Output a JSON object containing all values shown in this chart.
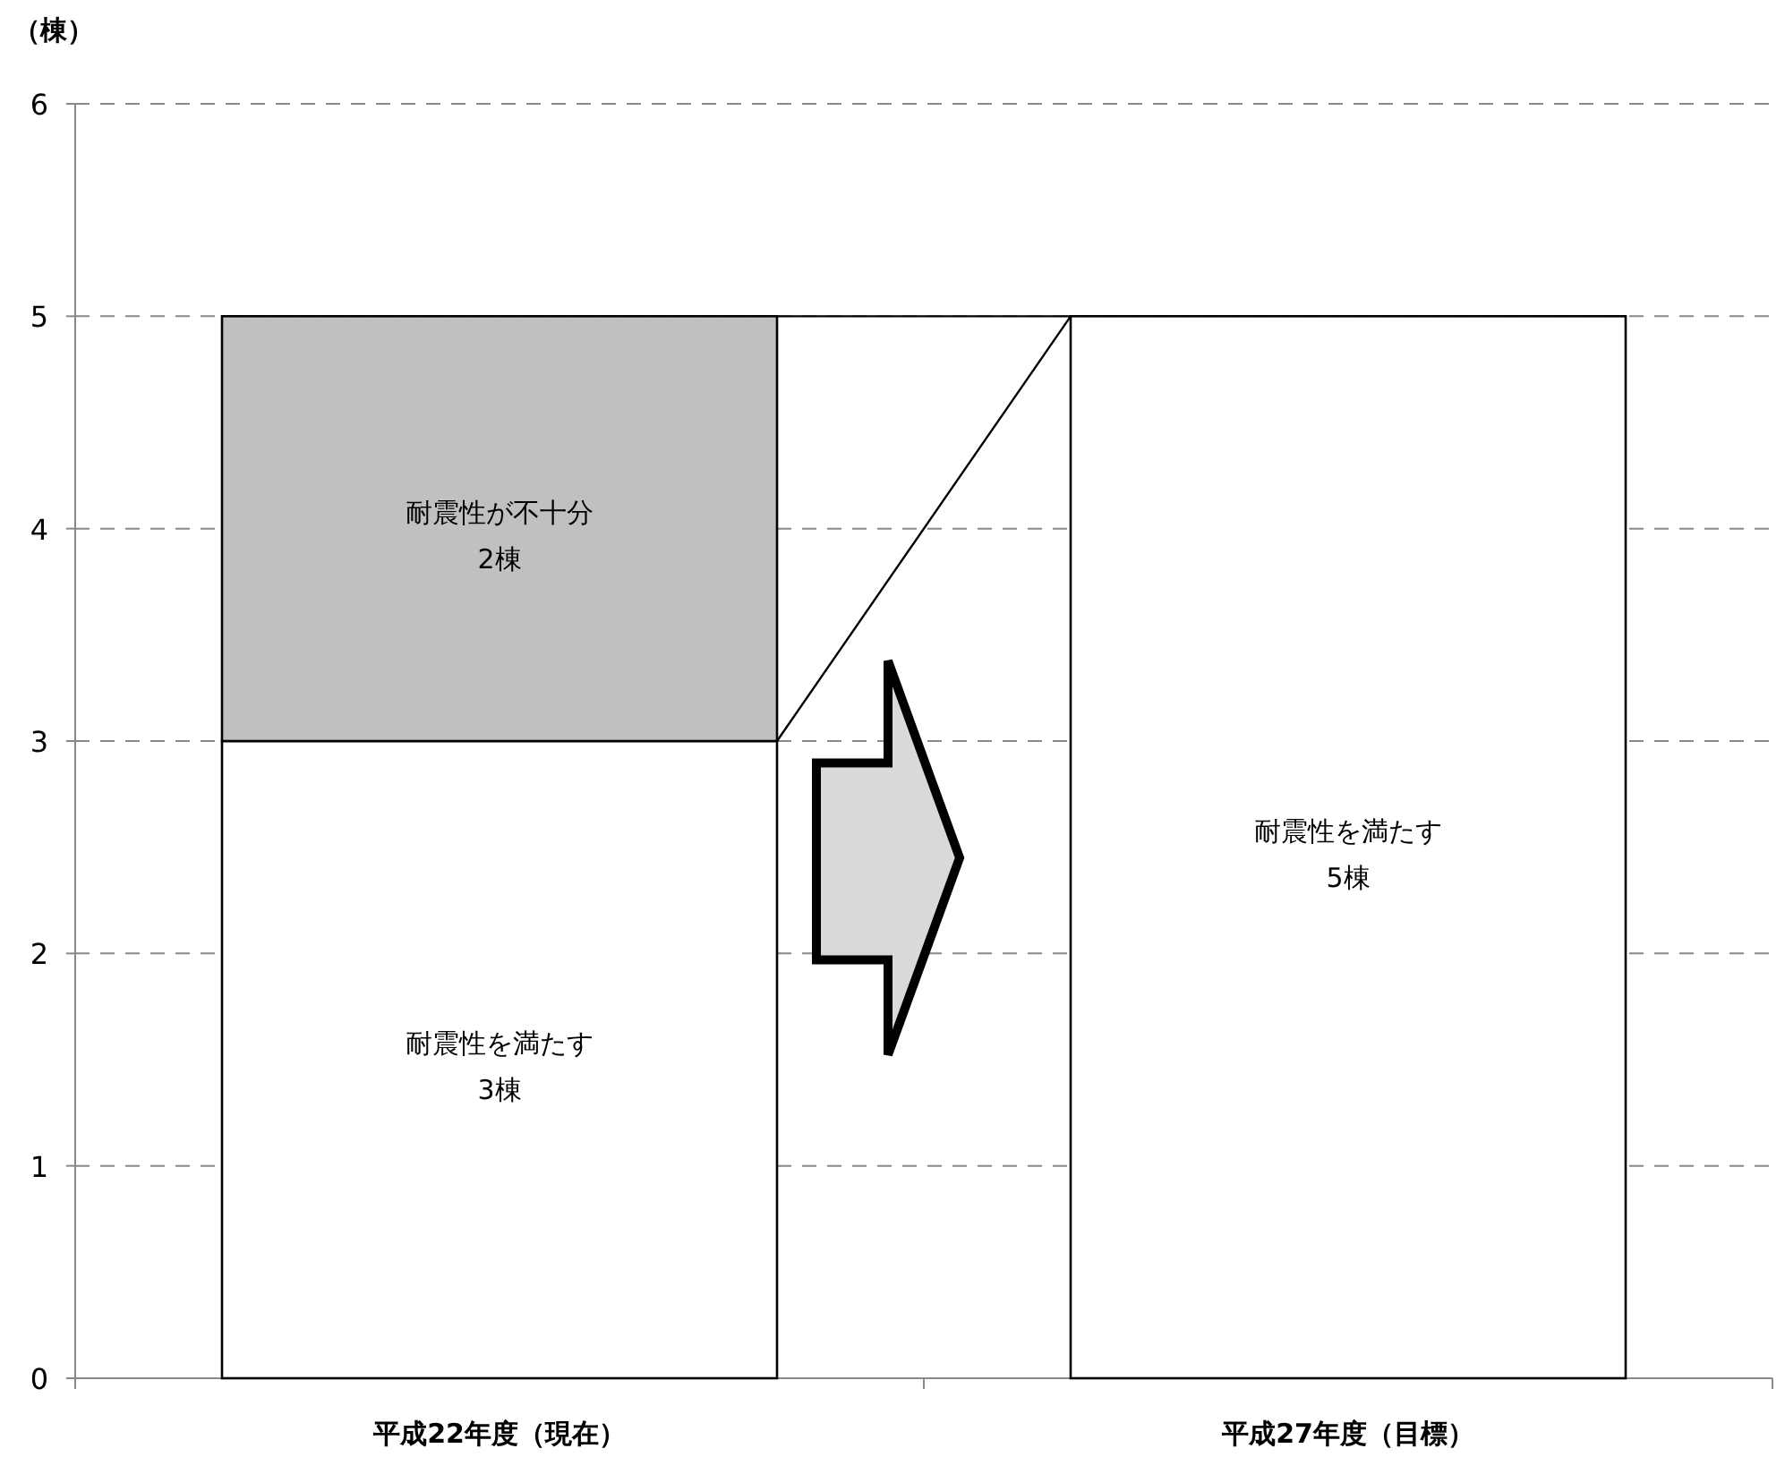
{
  "chart_data": {
    "type": "bar",
    "stacked": true,
    "ylabel": "（棟）",
    "categories": [
      "平成22年度（現在）",
      "平成27年度（目標）"
    ],
    "series": [
      {
        "name": "耐震性を満たす",
        "color": "#ffffff",
        "values": [
          3,
          5
        ],
        "value_labels": [
          "3棟",
          "5棟"
        ]
      },
      {
        "name": "耐震性が不十分",
        "color": "#c0c0c0",
        "values": [
          2,
          null
        ],
        "value_labels": [
          "2棟",
          null
        ]
      }
    ],
    "ylim": [
      0,
      6
    ],
    "yticks": [
      0,
      1,
      2,
      3,
      4,
      5,
      6
    ],
    "grid": "y"
  }
}
